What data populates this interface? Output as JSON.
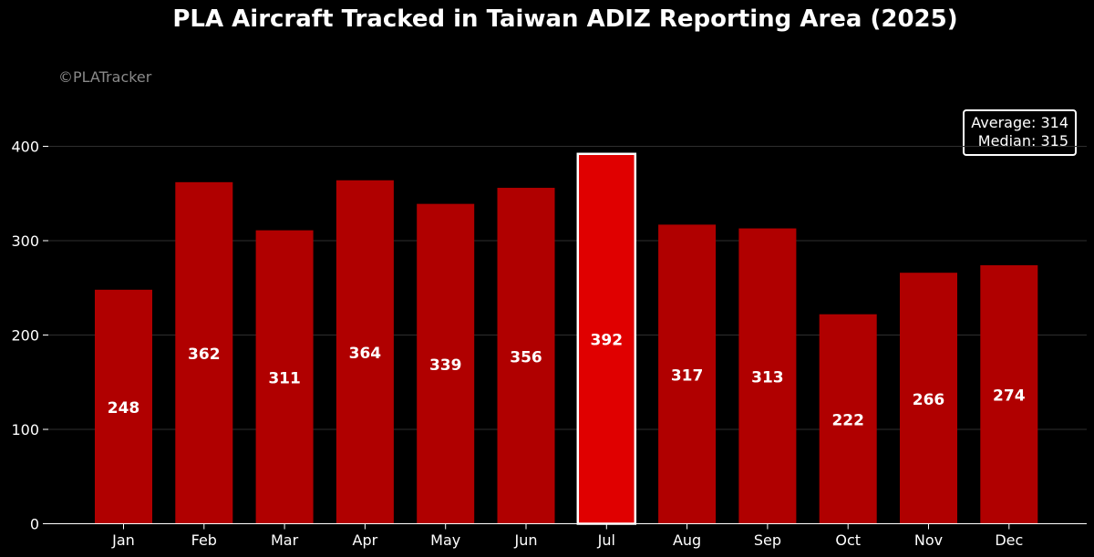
{
  "chart_data": {
    "type": "bar",
    "title": "PLA Aircraft Tracked in Taiwan ADIZ Reporting Area (2025)",
    "watermark": "©PLATracker",
    "categories": [
      "Jan",
      "Feb",
      "Mar",
      "Apr",
      "May",
      "Jun",
      "Jul",
      "Aug",
      "Sep",
      "Oct",
      "Nov",
      "Dec"
    ],
    "values": [
      248,
      362,
      311,
      364,
      339,
      356,
      392,
      317,
      313,
      222,
      266,
      274
    ],
    "data_labels": [
      "248",
      "362",
      "311",
      "364",
      "339",
      "356",
      "392",
      "317",
      "313",
      "222",
      "266",
      "274"
    ],
    "highlight_index": 6,
    "stats": {
      "average_label": "Average: 314",
      "median_label": "Median: 315"
    },
    "ylim": [
      0,
      400
    ],
    "yticks": [
      0,
      100,
      200,
      300,
      400
    ],
    "ytick_labels": [
      "0",
      "100",
      "200",
      "300",
      "400"
    ],
    "grid": true,
    "xlabel": "",
    "ylabel": "",
    "colors": {
      "background": "#000000",
      "bar": "#b00000",
      "highlight_bar": "#e00000",
      "highlight_border": "#ffffff",
      "grid": "#2e2e2e",
      "text": "#ffffff",
      "watermark": "#8a8a8a"
    }
  }
}
